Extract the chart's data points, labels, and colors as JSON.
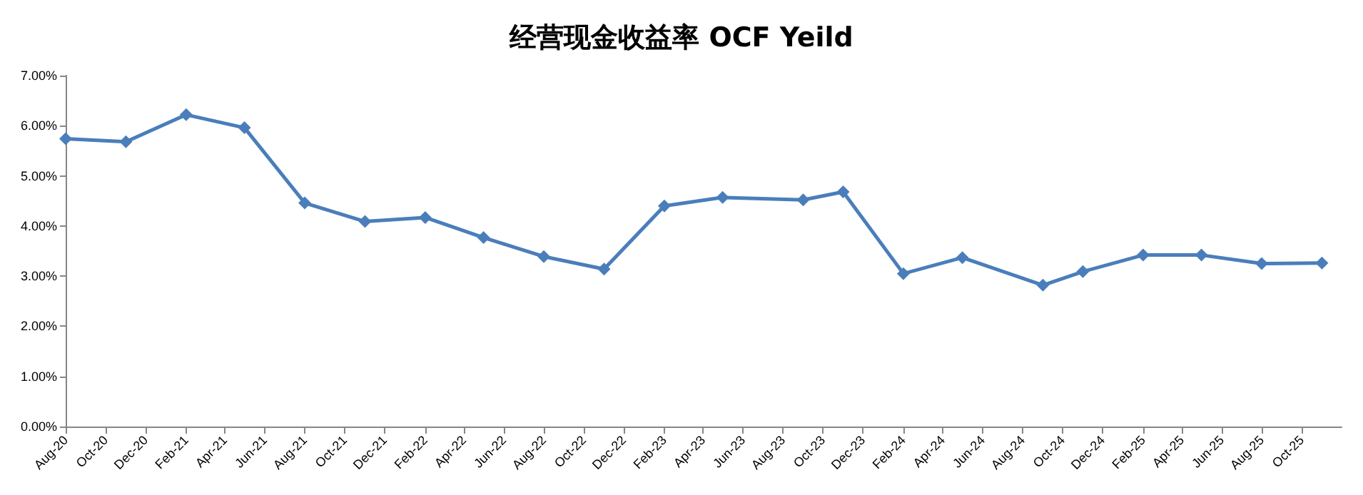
{
  "chart_data": {
    "type": "line",
    "title": "经营现金收益率 OCF Yeild",
    "x": [
      "2020-08",
      "2020-11",
      "2021-02",
      "2021-05",
      "2021-08",
      "2021-11",
      "2022-02",
      "2022-05",
      "2022-08",
      "2022-11",
      "2023-02",
      "2023-05",
      "2023-09",
      "2023-11",
      "2024-02",
      "2024-05",
      "2024-09",
      "2024-11",
      "2025-02",
      "2025-05",
      "2025-08",
      "2025-11"
    ],
    "series": [
      {
        "color": "#4a7ebb",
        "values": [
          5.74,
          5.68,
          6.22,
          5.96,
          4.46,
          4.09,
          4.17,
          3.77,
          3.39,
          3.14,
          4.4,
          4.57,
          4.52,
          4.68,
          3.05,
          3.37,
          2.82,
          3.09,
          3.42,
          3.42,
          3.25,
          3.26
        ]
      }
    ],
    "xlim": [
      "2020-08",
      "2025-12"
    ],
    "xticks": [
      {
        "value": "2020-08",
        "label": "Aug-20"
      },
      {
        "value": "2020-10",
        "label": "Oct-20"
      },
      {
        "value": "2020-12",
        "label": "Dec-20"
      },
      {
        "value": "2021-02",
        "label": "Feb-21"
      },
      {
        "value": "2021-04",
        "label": "Apr-21"
      },
      {
        "value": "2021-06",
        "label": "Jun-21"
      },
      {
        "value": "2021-08",
        "label": "Aug-21"
      },
      {
        "value": "2021-10",
        "label": "Oct-21"
      },
      {
        "value": "2021-12",
        "label": "Dec-21"
      },
      {
        "value": "2022-02",
        "label": "Feb-22"
      },
      {
        "value": "2022-04",
        "label": "Apr-22"
      },
      {
        "value": "2022-06",
        "label": "Jun-22"
      },
      {
        "value": "2022-08",
        "label": "Aug-22"
      },
      {
        "value": "2022-10",
        "label": "Oct-22"
      },
      {
        "value": "2022-12",
        "label": "Dec-22"
      },
      {
        "value": "2023-02",
        "label": "Feb-23"
      },
      {
        "value": "2023-04",
        "label": "Apr-23"
      },
      {
        "value": "2023-06",
        "label": "Jun-23"
      },
      {
        "value": "2023-08",
        "label": "Aug-23"
      },
      {
        "value": "2023-10",
        "label": "Oct-23"
      },
      {
        "value": "2023-12",
        "label": "Dec-23"
      },
      {
        "value": "2024-02",
        "label": "Feb-24"
      },
      {
        "value": "2024-04",
        "label": "Apr-24"
      },
      {
        "value": "2024-06",
        "label": "Jun-24"
      },
      {
        "value": "2024-08",
        "label": "Aug-24"
      },
      {
        "value": "2024-10",
        "label": "Oct-24"
      },
      {
        "value": "2024-12",
        "label": "Dec-24"
      },
      {
        "value": "2025-02",
        "label": "Feb-25"
      },
      {
        "value": "2025-04",
        "label": "Apr-25"
      },
      {
        "value": "2025-06",
        "label": "Jun-25"
      },
      {
        "value": "2025-08",
        "label": "Aug-25"
      },
      {
        "value": "2025-10",
        "label": "Oct-25"
      }
    ],
    "ylim": [
      0,
      7
    ],
    "yticks": [
      {
        "value": 0,
        "label": "0.00%"
      },
      {
        "value": 1,
        "label": "1.00%"
      },
      {
        "value": 2,
        "label": "2.00%"
      },
      {
        "value": 3,
        "label": "3.00%"
      },
      {
        "value": 4,
        "label": "4.00%"
      },
      {
        "value": 5,
        "label": "5.00%"
      },
      {
        "value": 6,
        "label": "6.00%"
      },
      {
        "value": 7,
        "label": "7.00%"
      }
    ],
    "marker": "diamond",
    "line_style": "solid"
  }
}
